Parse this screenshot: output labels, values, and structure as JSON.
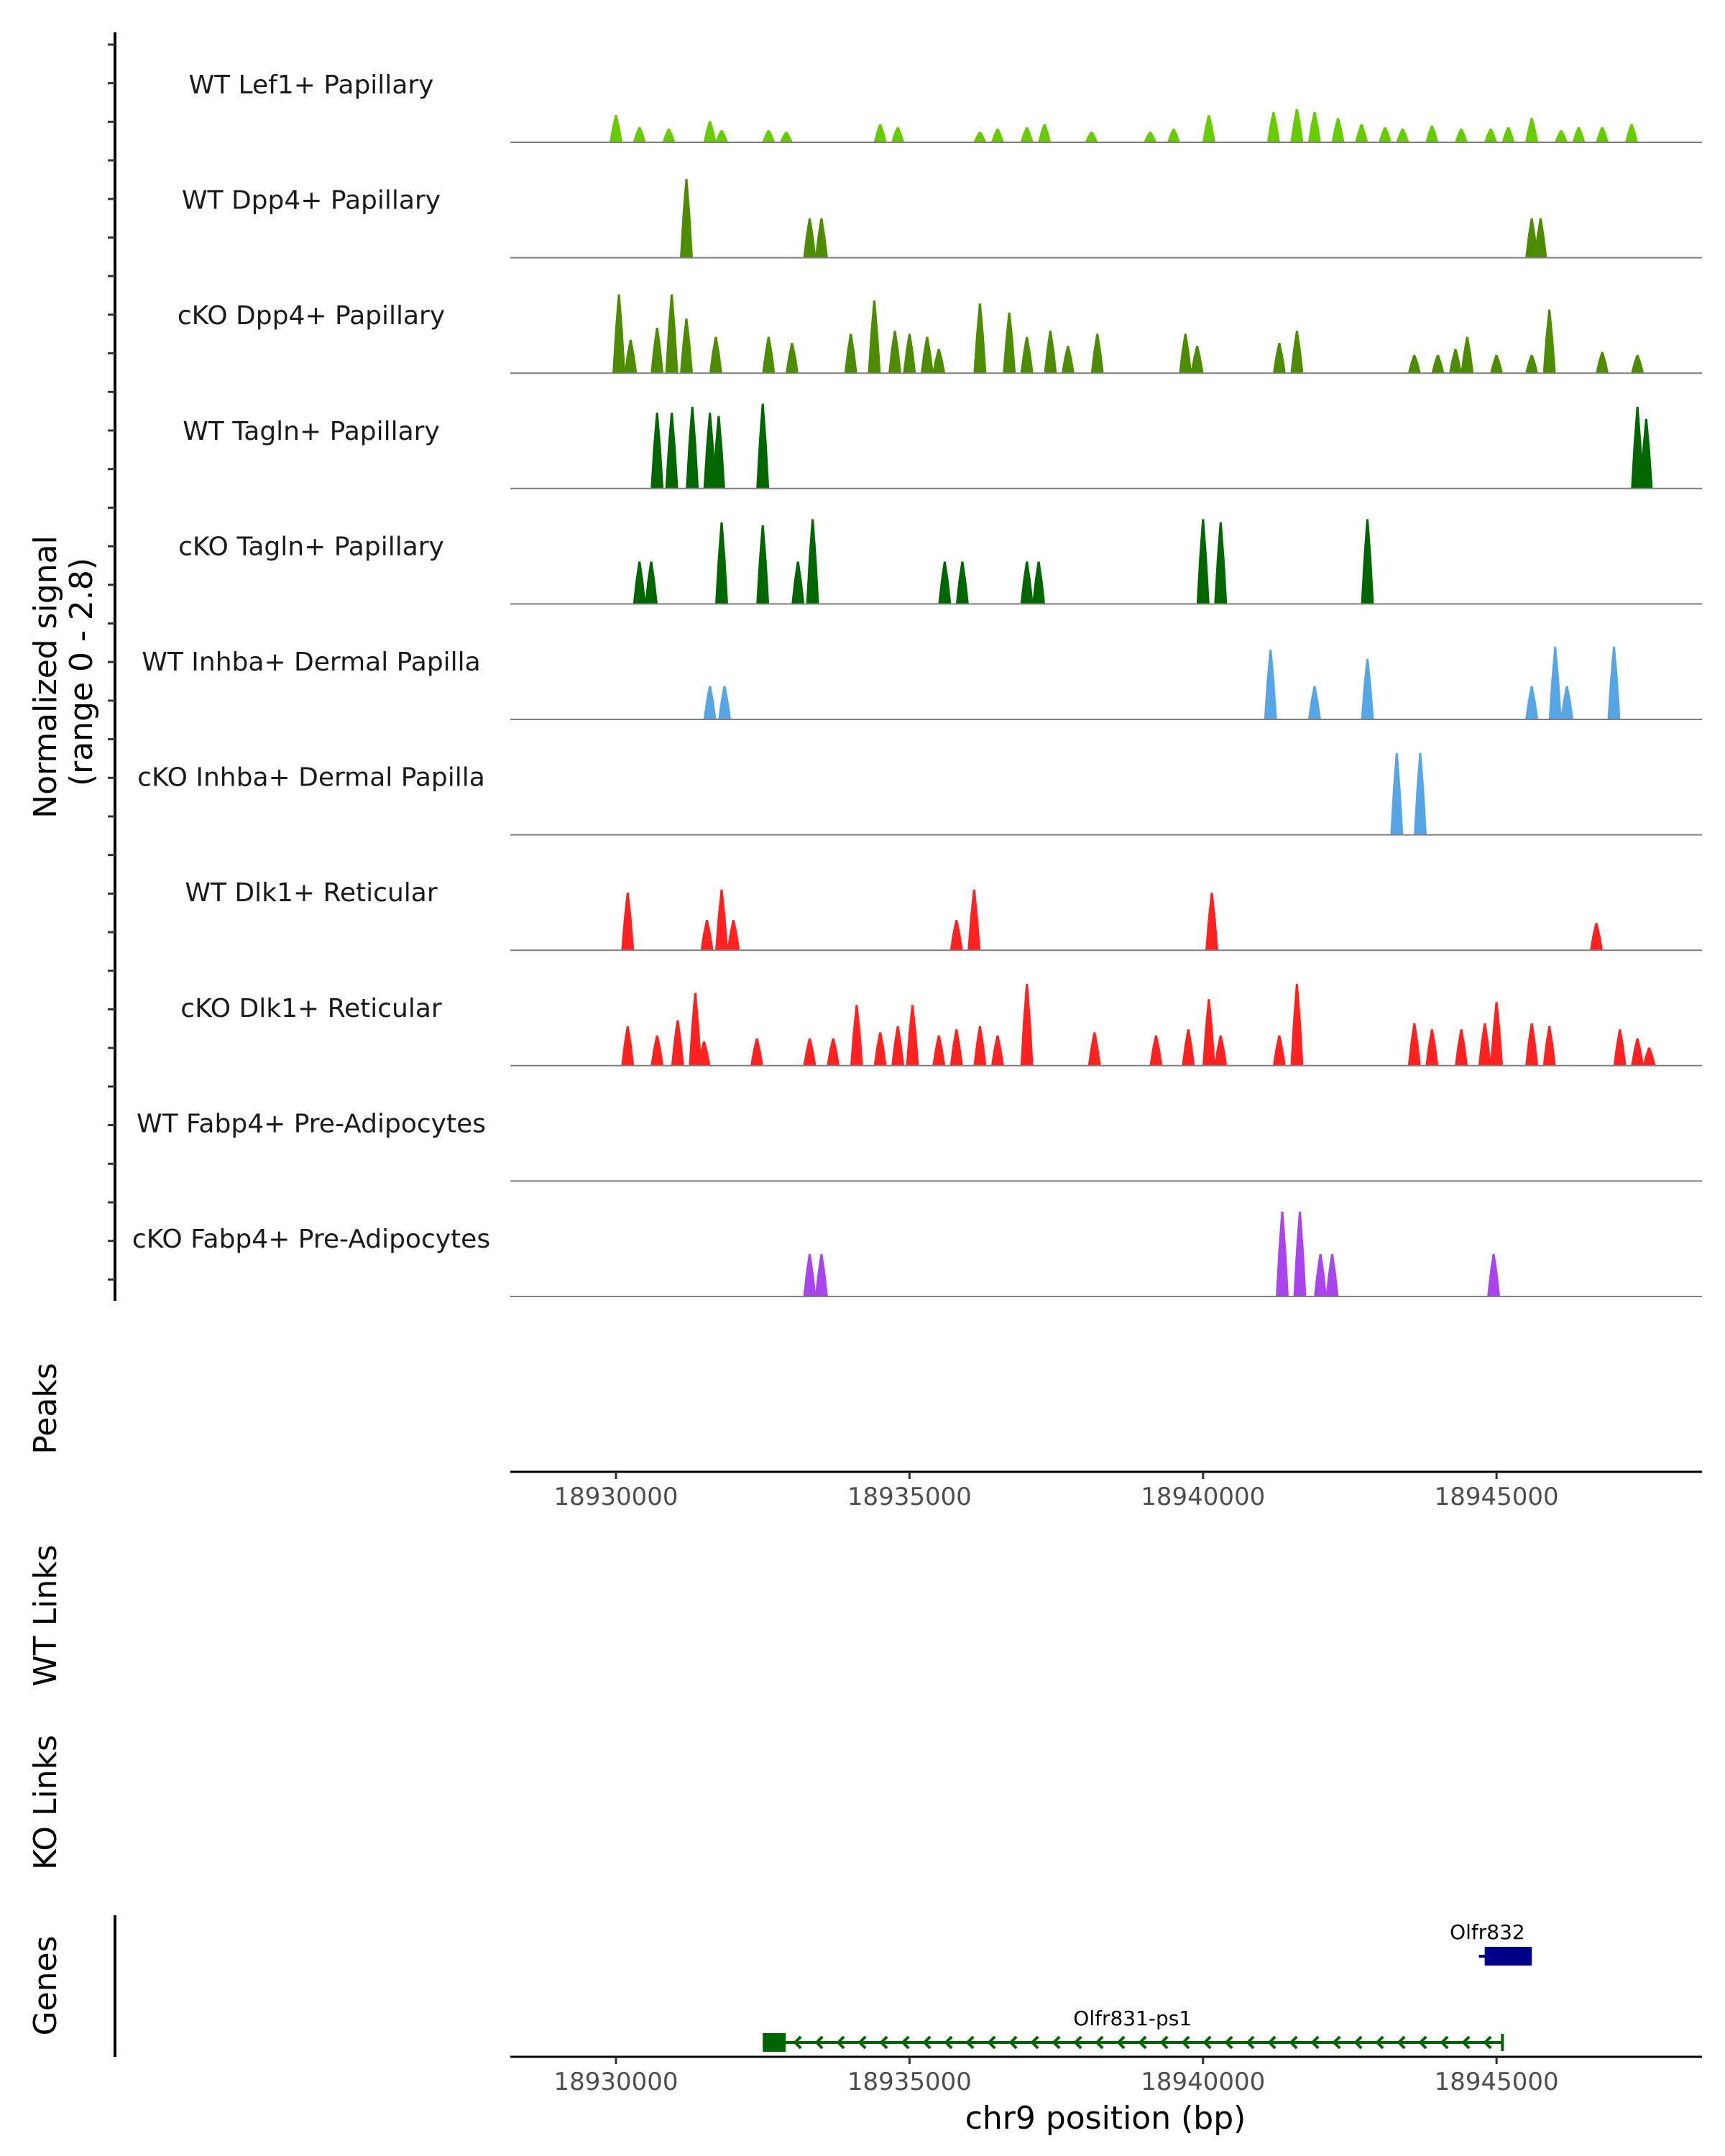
{
  "chart_data": {
    "type": "area",
    "coverage_ylabel": [
      "Normalized signal",
      "(range 0 - 2.8)"
    ],
    "ylim": [
      0,
      2.8
    ],
    "xlim": [
      18928200,
      18948500
    ],
    "x_ticks": [
      18930000,
      18935000,
      18940000,
      18945000
    ],
    "x_tick_labels": [
      "18930000",
      "18935000",
      "18940000",
      "18945000"
    ],
    "xlabel": "chr9 position (bp)",
    "panel_labels": {
      "peaks": "Peaks",
      "wt_links": "WT Links",
      "ko_links": "KO Links",
      "genes": "Genes"
    },
    "tracks": [
      {
        "name": "WT Lef1+ Papillary",
        "color": "#66CC00",
        "peaks": [
          [
            18930000,
            0.9
          ],
          [
            18930400,
            0.5
          ],
          [
            18930900,
            0.45
          ],
          [
            18931600,
            0.7
          ],
          [
            18931800,
            0.4
          ],
          [
            18932600,
            0.4
          ],
          [
            18932900,
            0.35
          ],
          [
            18934500,
            0.6
          ],
          [
            18934800,
            0.5
          ],
          [
            18936200,
            0.35
          ],
          [
            18936500,
            0.45
          ],
          [
            18937000,
            0.5
          ],
          [
            18937300,
            0.6
          ],
          [
            18938100,
            0.35
          ],
          [
            18939100,
            0.35
          ],
          [
            18939500,
            0.45
          ],
          [
            18940100,
            0.9
          ],
          [
            18941200,
            1.0
          ],
          [
            18941600,
            1.1
          ],
          [
            18941900,
            1.0
          ],
          [
            18942300,
            0.8
          ],
          [
            18942700,
            0.6
          ],
          [
            18943100,
            0.5
          ],
          [
            18943400,
            0.45
          ],
          [
            18943900,
            0.55
          ],
          [
            18944400,
            0.45
          ],
          [
            18944900,
            0.45
          ],
          [
            18945200,
            0.5
          ],
          [
            18945600,
            0.8
          ],
          [
            18946100,
            0.4
          ],
          [
            18946400,
            0.5
          ],
          [
            18946800,
            0.5
          ],
          [
            18947300,
            0.6
          ]
        ]
      },
      {
        "name": "WT Dpp4+ Papillary",
        "color": "#4D8C00",
        "peaks": [
          [
            18931200,
            2.6
          ],
          [
            18933300,
            1.3
          ],
          [
            18933500,
            1.3
          ],
          [
            18945600,
            1.3
          ],
          [
            18945750,
            1.3
          ]
        ]
      },
      {
        "name": "cKO Dpp4+ Papillary",
        "color": "#4D8C00",
        "peaks": [
          [
            18930050,
            2.6
          ],
          [
            18930250,
            1.1
          ],
          [
            18930700,
            1.5
          ],
          [
            18930950,
            2.6
          ],
          [
            18931200,
            1.8
          ],
          [
            18931700,
            1.2
          ],
          [
            18932600,
            1.2
          ],
          [
            18933000,
            1.0
          ],
          [
            18934000,
            1.3
          ],
          [
            18934400,
            2.4
          ],
          [
            18934750,
            1.4
          ],
          [
            18935000,
            1.3
          ],
          [
            18935300,
            1.2
          ],
          [
            18935500,
            0.8
          ],
          [
            18936200,
            2.3
          ],
          [
            18936700,
            2.0
          ],
          [
            18937000,
            1.2
          ],
          [
            18937400,
            1.4
          ],
          [
            18937700,
            0.9
          ],
          [
            18938200,
            1.3
          ],
          [
            18939700,
            1.3
          ],
          [
            18939900,
            0.9
          ],
          [
            18941300,
            1.0
          ],
          [
            18941600,
            1.4
          ],
          [
            18943600,
            0.6
          ],
          [
            18944000,
            0.6
          ],
          [
            18944300,
            0.8
          ],
          [
            18944500,
            1.2
          ],
          [
            18945000,
            0.6
          ],
          [
            18945600,
            0.6
          ],
          [
            18945900,
            2.1
          ],
          [
            18946800,
            0.7
          ],
          [
            18947400,
            0.6
          ]
        ]
      },
      {
        "name": "WT Tagln+ Papillary",
        "color": "#006600",
        "peaks": [
          [
            18930700,
            2.5
          ],
          [
            18930950,
            2.5
          ],
          [
            18931300,
            2.7
          ],
          [
            18931600,
            2.5
          ],
          [
            18931750,
            2.4
          ],
          [
            18932500,
            2.8
          ],
          [
            18947400,
            2.7
          ],
          [
            18947550,
            2.3
          ]
        ]
      },
      {
        "name": "cKO Tagln+ Papillary",
        "color": "#006600",
        "peaks": [
          [
            18930400,
            1.4
          ],
          [
            18930600,
            1.4
          ],
          [
            18931800,
            2.7
          ],
          [
            18932500,
            2.6
          ],
          [
            18933100,
            1.4
          ],
          [
            18933350,
            2.8
          ],
          [
            18935600,
            1.4
          ],
          [
            18935900,
            1.4
          ],
          [
            18937000,
            1.4
          ],
          [
            18937200,
            1.4
          ],
          [
            18940000,
            2.8
          ],
          [
            18940300,
            2.7
          ],
          [
            18942800,
            2.8
          ]
        ]
      },
      {
        "name": "WT Inhba+ Dermal Papilla",
        "color": "#56A6E6",
        "peaks": [
          [
            18931600,
            1.1
          ],
          [
            18931850,
            1.1
          ],
          [
            18941150,
            2.3
          ],
          [
            18941900,
            1.1
          ],
          [
            18942800,
            2.0
          ],
          [
            18945600,
            1.1
          ],
          [
            18946000,
            2.4
          ],
          [
            18946200,
            1.1
          ],
          [
            18947000,
            2.4
          ]
        ]
      },
      {
        "name": "cKO Inhba+ Dermal Papilla",
        "color": "#56A6E6",
        "peaks": [
          [
            18943300,
            2.7
          ],
          [
            18943700,
            2.7
          ]
        ]
      },
      {
        "name": "WT Dlk1+ Reticular",
        "color": "#FF2020",
        "peaks": [
          [
            18930200,
            1.9
          ],
          [
            18931550,
            1.0
          ],
          [
            18931800,
            2.0
          ],
          [
            18932000,
            1.0
          ],
          [
            18935800,
            1.0
          ],
          [
            18936100,
            2.0
          ],
          [
            18940150,
            1.9
          ],
          [
            18946700,
            0.9
          ]
        ]
      },
      {
        "name": "cKO Dlk1+ Reticular",
        "color": "#FF2020",
        "peaks": [
          [
            18930200,
            1.3
          ],
          [
            18930700,
            1.0
          ],
          [
            18931050,
            1.5
          ],
          [
            18931350,
            2.4
          ],
          [
            18931500,
            0.8
          ],
          [
            18932400,
            0.9
          ],
          [
            18933300,
            0.9
          ],
          [
            18933700,
            0.9
          ],
          [
            18934100,
            2.0
          ],
          [
            18934500,
            1.1
          ],
          [
            18934800,
            1.3
          ],
          [
            18935050,
            2.0
          ],
          [
            18935500,
            1.0
          ],
          [
            18935800,
            1.2
          ],
          [
            18936200,
            1.3
          ],
          [
            18936500,
            1.0
          ],
          [
            18937000,
            2.7
          ],
          [
            18938150,
            1.1
          ],
          [
            18939200,
            1.0
          ],
          [
            18939750,
            1.2
          ],
          [
            18940100,
            2.2
          ],
          [
            18940300,
            1.0
          ],
          [
            18941300,
            1.0
          ],
          [
            18941600,
            2.7
          ],
          [
            18943600,
            1.4
          ],
          [
            18943900,
            1.2
          ],
          [
            18944400,
            1.2
          ],
          [
            18944800,
            1.4
          ],
          [
            18945000,
            2.1
          ],
          [
            18945600,
            1.4
          ],
          [
            18945900,
            1.3
          ],
          [
            18947100,
            1.2
          ],
          [
            18947400,
            0.9
          ],
          [
            18947600,
            0.6
          ]
        ]
      },
      {
        "name": "WT Fabp4+ Pre-Adipocytes",
        "color": "#9E36E6",
        "peaks": []
      },
      {
        "name": "cKO Fabp4+ Pre-Adipocytes",
        "color": "#AA44EE",
        "peaks": [
          [
            18933300,
            1.4
          ],
          [
            18933500,
            1.4
          ],
          [
            18941350,
            2.8
          ],
          [
            18941650,
            2.8
          ],
          [
            18942000,
            1.4
          ],
          [
            18942200,
            1.4
          ],
          [
            18944950,
            1.4
          ]
        ]
      }
    ],
    "genes": [
      {
        "name": "Olfr832",
        "start": 18944700,
        "end": 18945600,
        "strand": "-",
        "color": "#00008B",
        "row": 0
      },
      {
        "name": "Olfr831-ps1",
        "start": 18932500,
        "end": 18945100,
        "strand": "-",
        "color": "#006400",
        "row": 1
      }
    ]
  }
}
